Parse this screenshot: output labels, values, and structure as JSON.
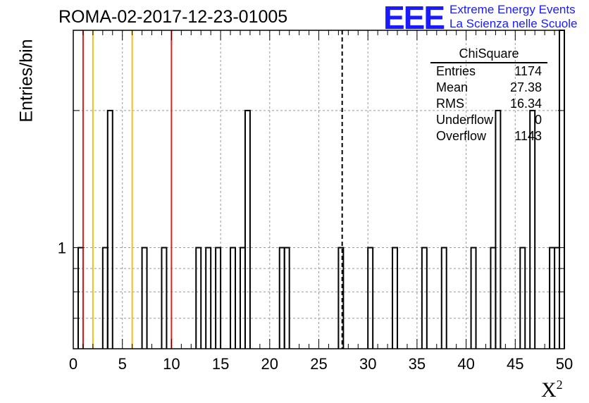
{
  "title": "ROMA-02-2017-12-23-01005",
  "logo": {
    "mark": "EEE",
    "line1": "Extreme Energy Events",
    "line2": "La Scienza nelle Scuole"
  },
  "stats_box": {
    "title": "ChiSquare",
    "rows": [
      {
        "label": "Entries",
        "value": "1174"
      },
      {
        "label": "Mean",
        "value": "27.38"
      },
      {
        "label": "RMS",
        "value": "16.34"
      },
      {
        "label": "Underflow",
        "value": "0"
      },
      {
        "label": "Overflow",
        "value": "1143"
      }
    ]
  },
  "colors": {
    "red_line": "#dd2020",
    "yellow_line": "#f0c020",
    "histogram": "#000000",
    "grid": "#999999",
    "logo": "#1a1aff"
  },
  "chart_data": {
    "type": "bar",
    "title": "ROMA-02-2017-12-23-01005",
    "xlabel": "X²",
    "ylabel": "Entries/bin",
    "xlim": [
      0,
      50
    ],
    "ylim": [
      0.6,
      3.0
    ],
    "yscale": "log",
    "bin_width": 0.5,
    "x_ticks": [
      "0",
      "5",
      "10",
      "15",
      "20",
      "25",
      "30",
      "35",
      "40",
      "45",
      "50"
    ],
    "y_ticks": [
      "1"
    ],
    "grid": true,
    "bins": [
      {
        "x": 0.5,
        "y": 1
      },
      {
        "x": 3.0,
        "y": 1
      },
      {
        "x": 3.5,
        "y": 2
      },
      {
        "x": 7.0,
        "y": 1
      },
      {
        "x": 9.0,
        "y": 1
      },
      {
        "x": 12.5,
        "y": 1
      },
      {
        "x": 13.5,
        "y": 1
      },
      {
        "x": 14.5,
        "y": 1
      },
      {
        "x": 16.0,
        "y": 1
      },
      {
        "x": 17.0,
        "y": 1
      },
      {
        "x": 17.5,
        "y": 2
      },
      {
        "x": 21.0,
        "y": 1
      },
      {
        "x": 21.5,
        "y": 1
      },
      {
        "x": 27.0,
        "y": 1
      },
      {
        "x": 30.0,
        "y": 1
      },
      {
        "x": 32.5,
        "y": 1
      },
      {
        "x": 35.5,
        "y": 1
      },
      {
        "x": 37.5,
        "y": 1
      },
      {
        "x": 40.5,
        "y": 1
      },
      {
        "x": 42.5,
        "y": 1
      },
      {
        "x": 43.0,
        "y": 2
      },
      {
        "x": 45.5,
        "y": 1
      },
      {
        "x": 46.5,
        "y": 2
      },
      {
        "x": 48.5,
        "y": 1
      },
      {
        "x": 49.0,
        "y": 1
      },
      {
        "x": 49.5,
        "y": 3
      }
    ],
    "reference_lines": [
      {
        "x": 1,
        "color": "red"
      },
      {
        "x": 2,
        "color": "yellow"
      },
      {
        "x": 6,
        "color": "yellow"
      },
      {
        "x": 10,
        "color": "red"
      }
    ],
    "mean_line": {
      "x": 27.38,
      "style": "dashed"
    },
    "stats": {
      "entries": 1174,
      "mean": 27.38,
      "rms": 16.34,
      "underflow": 0,
      "overflow": 1143
    }
  }
}
